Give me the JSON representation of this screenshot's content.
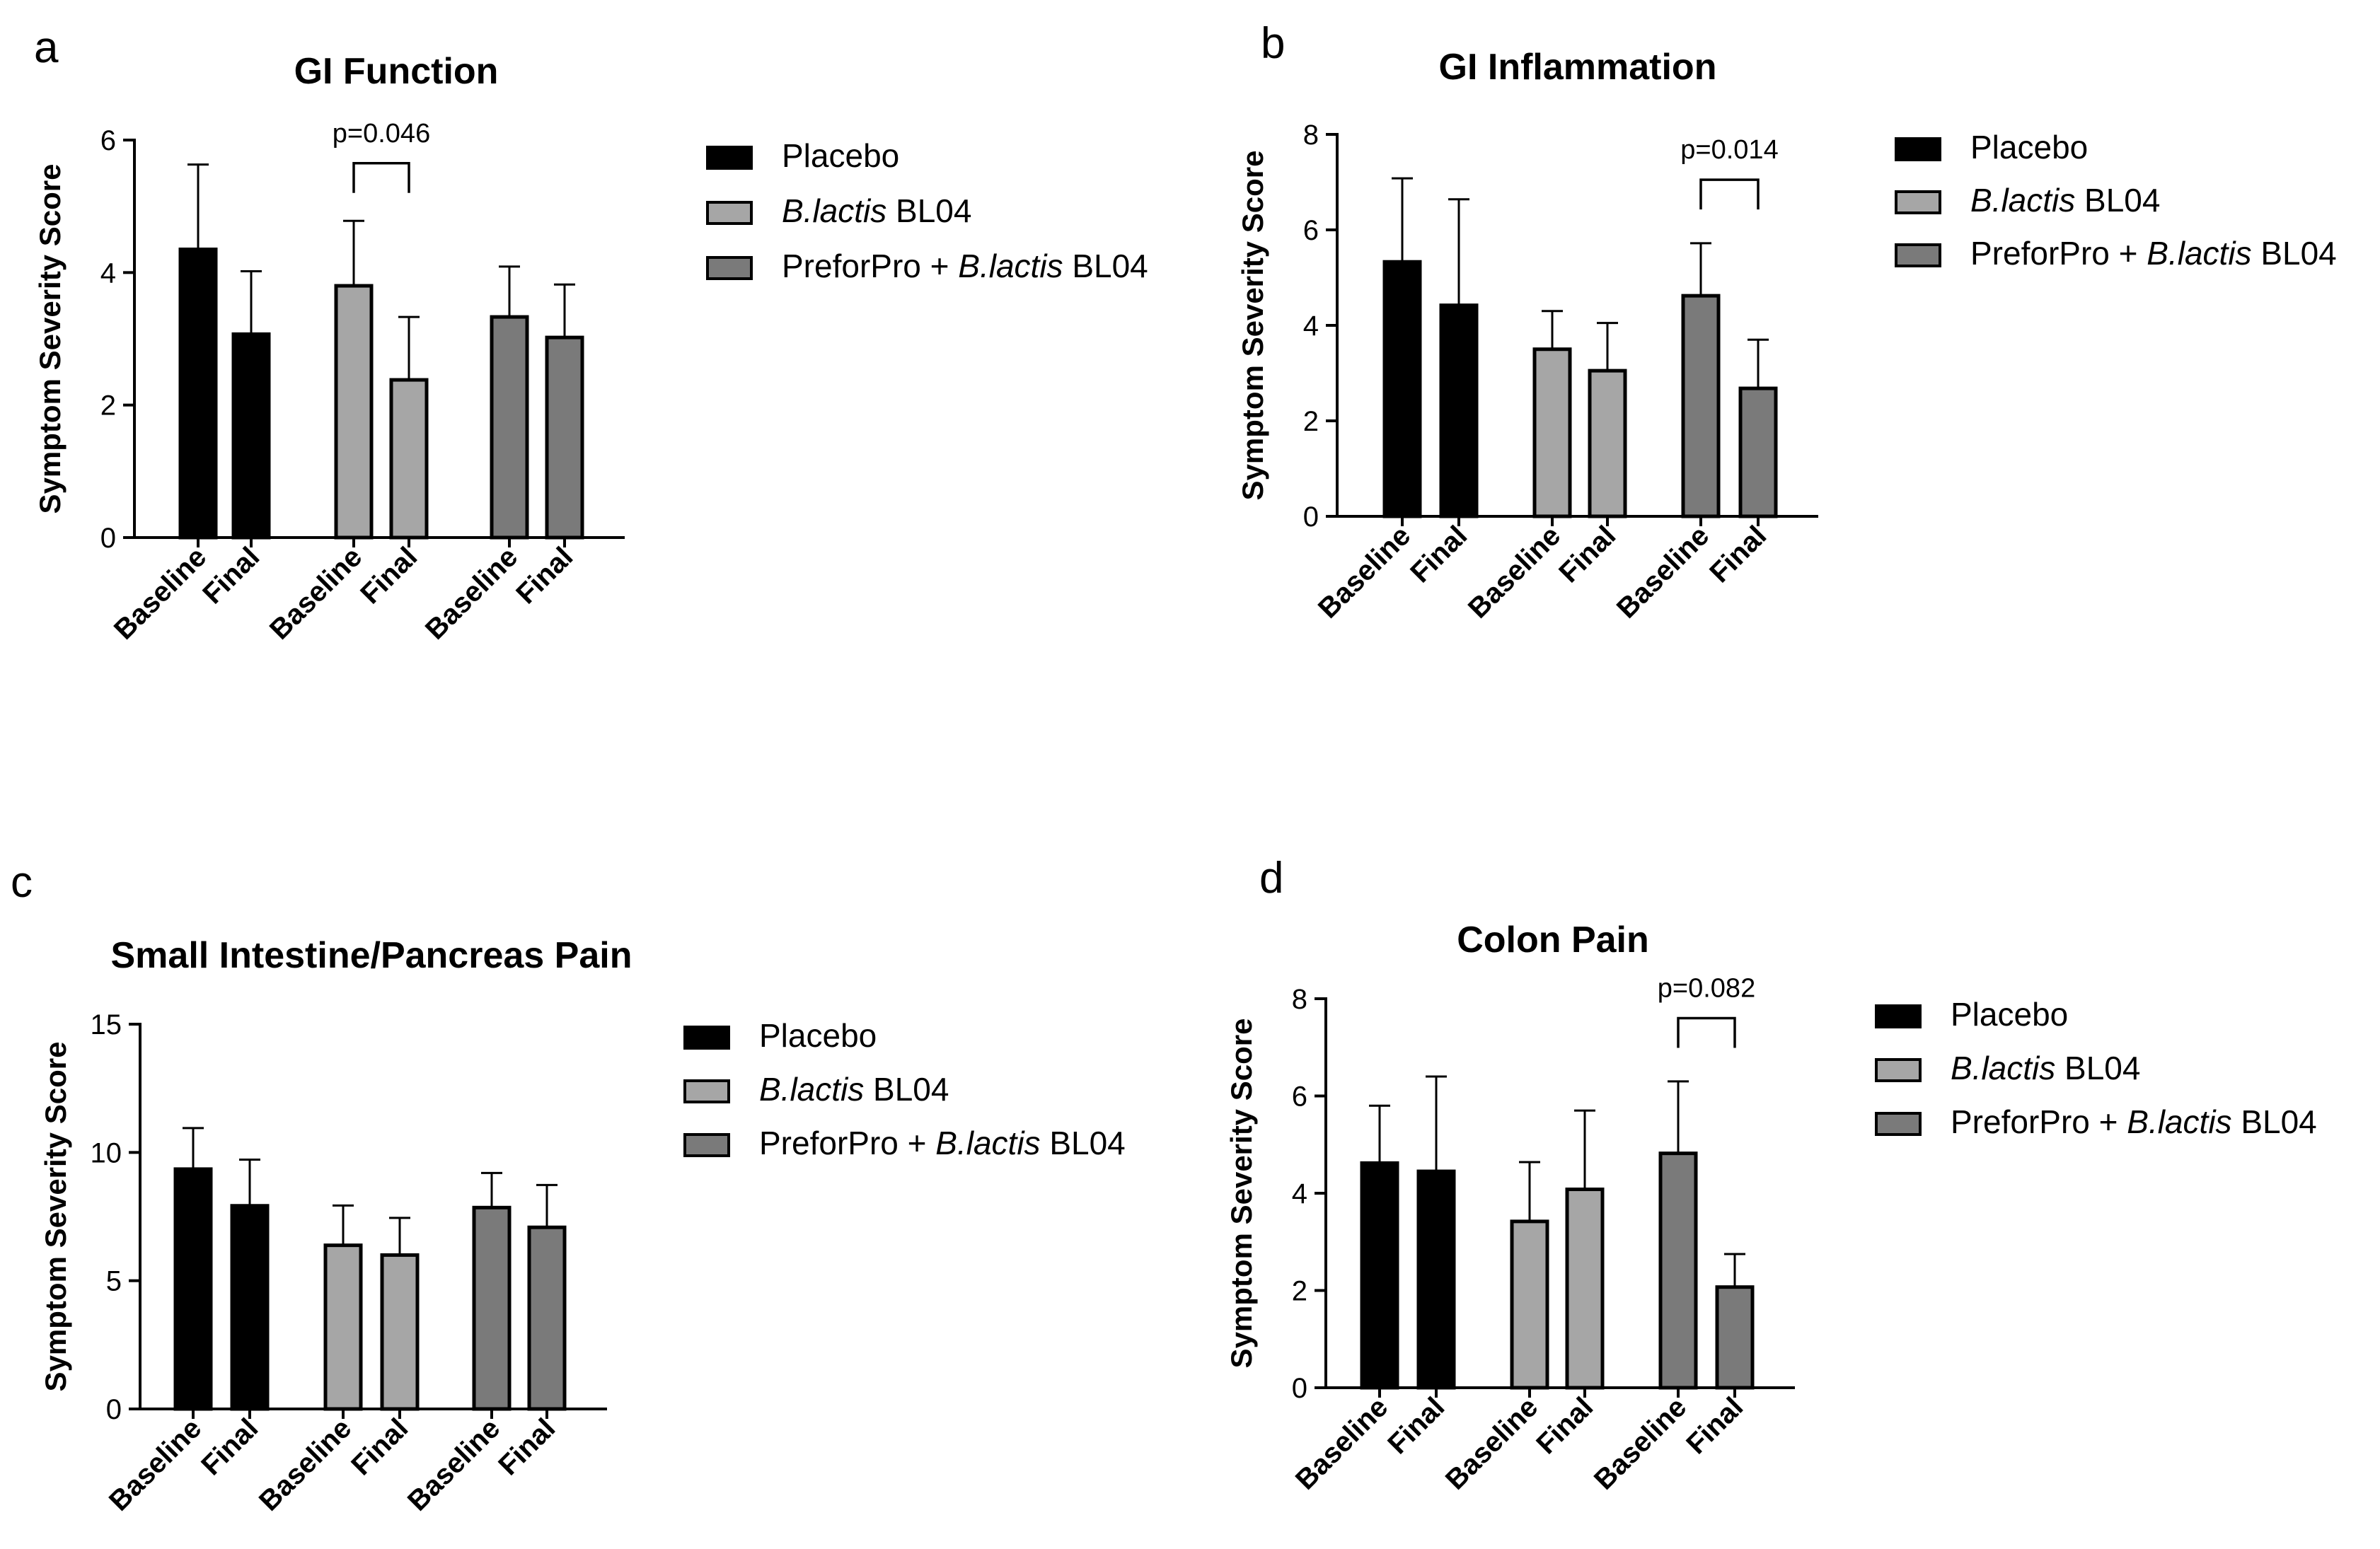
{
  "figure": {
    "legend": [
      {
        "prefix": "",
        "italic": "",
        "suffix": "Placebo",
        "color": "#000000"
      },
      {
        "prefix": "",
        "italic": "B.lactis",
        "suffix": " BL04",
        "color": "#a6a6a6"
      },
      {
        "prefix": "PreforPro + ",
        "italic": "B.lactis",
        "suffix": " BL04",
        "color": "#7a7a7a"
      }
    ],
    "group_colors": [
      "#000000",
      "#a6a6a6",
      "#7a7a7a"
    ]
  },
  "chart_data": [
    {
      "panel_letter": "a",
      "type": "bar",
      "title": "GI Function",
      "ylabel": "Symptom Severity Score",
      "xlabel": "",
      "categories": [
        "Baseline",
        "Final",
        "Baseline",
        "Final",
        "Baseline",
        "Final"
      ],
      "values": [
        4.35,
        3.07,
        3.8,
        2.38,
        3.33,
        3.02
      ],
      "errors": [
        1.28,
        0.95,
        0.98,
        0.95,
        0.76,
        0.8
      ],
      "groups": [
        0,
        0,
        1,
        1,
        2,
        2
      ],
      "ylim": [
        0,
        6
      ],
      "yticks": [
        "0",
        "2",
        "4",
        "6"
      ],
      "annotation": {
        "text": "p=0.046",
        "bars": [
          2,
          3
        ],
        "y": 5.65
      }
    },
    {
      "panel_letter": "b",
      "type": "bar",
      "title": "GI Inflammation",
      "ylabel": "Symptom Severity Score",
      "xlabel": "",
      "categories": [
        "Baseline",
        "Final",
        "Baseline",
        "Final",
        "Baseline",
        "Final"
      ],
      "values": [
        5.33,
        4.42,
        3.5,
        3.05,
        4.62,
        2.68
      ],
      "errors": [
        1.75,
        2.22,
        0.8,
        1.0,
        1.1,
        1.02
      ],
      "groups": [
        0,
        0,
        1,
        1,
        2,
        2
      ],
      "ylim": [
        0,
        8
      ],
      "yticks": [
        "0",
        "2",
        "4",
        "6",
        "8"
      ],
      "annotation": {
        "text": "p=0.014",
        "bars": [
          4,
          5
        ],
        "y": 7.05
      }
    },
    {
      "panel_letter": "c",
      "type": "bar",
      "title": "Small Intestine/Pancreas Pain",
      "ylabel": "Symptom Severity Score",
      "xlabel": "",
      "categories": [
        "Baseline",
        "Final",
        "Baseline",
        "Final",
        "Baseline",
        "Final"
      ],
      "values": [
        9.35,
        7.92,
        6.38,
        6.0,
        7.85,
        7.08
      ],
      "errors": [
        1.6,
        1.8,
        1.55,
        1.45,
        1.35,
        1.65
      ],
      "groups": [
        0,
        0,
        1,
        1,
        2,
        2
      ],
      "ylim": [
        0,
        15
      ],
      "yticks": [
        "0",
        "5",
        "10",
        "15"
      ],
      "annotation": null
    },
    {
      "panel_letter": "d",
      "type": "bar",
      "title": "Colon Pain",
      "ylabel": "Symptom Severity Score",
      "xlabel": "",
      "categories": [
        "Baseline",
        "Final",
        "Baseline",
        "Final",
        "Baseline",
        "Final"
      ],
      "values": [
        4.62,
        4.45,
        3.42,
        4.08,
        4.82,
        2.07
      ],
      "errors": [
        1.18,
        1.95,
        1.22,
        1.62,
        1.48,
        0.68
      ],
      "groups": [
        0,
        0,
        1,
        1,
        2,
        2
      ],
      "ylim": [
        0,
        8
      ],
      "yticks": [
        "0",
        "2",
        "4",
        "6",
        "8"
      ],
      "annotation": {
        "text": "p=0.082",
        "bars": [
          4,
          5
        ],
        "y": 7.6
      }
    }
  ]
}
